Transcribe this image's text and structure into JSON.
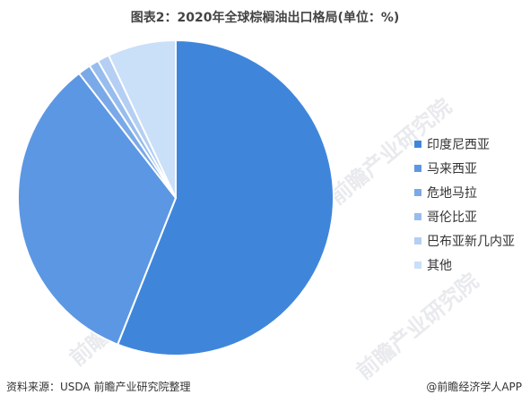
{
  "title": "图表2：2020年全球棕榈油出口格局(单位：%)",
  "source": "资料来源：USDA 前瞻产业研究院整理",
  "brand": "@前瞻经济学人APP",
  "watermark": "前瞻产业研究院",
  "chart_data": {
    "type": "pie",
    "title": "图表2：2020年全球棕榈油出口格局(单位：%)",
    "legend_position": "right",
    "start": "12 o'clock, clockwise",
    "slices": [
      {
        "name": "印度尼西亚",
        "value": 56.0,
        "color": "#3f86db"
      },
      {
        "name": "马来西亚",
        "value": 33.5,
        "color": "#5c97e3"
      },
      {
        "name": "危地马拉",
        "value": 1.3,
        "color": "#7aa9e8"
      },
      {
        "name": "哥伦比亚",
        "value": 1.0,
        "color": "#97bdee"
      },
      {
        "name": "巴布亚新几内亚",
        "value": 1.2,
        "color": "#b4cff3"
      },
      {
        "name": "其他",
        "value": 7.0,
        "color": "#cadff8"
      }
    ]
  }
}
